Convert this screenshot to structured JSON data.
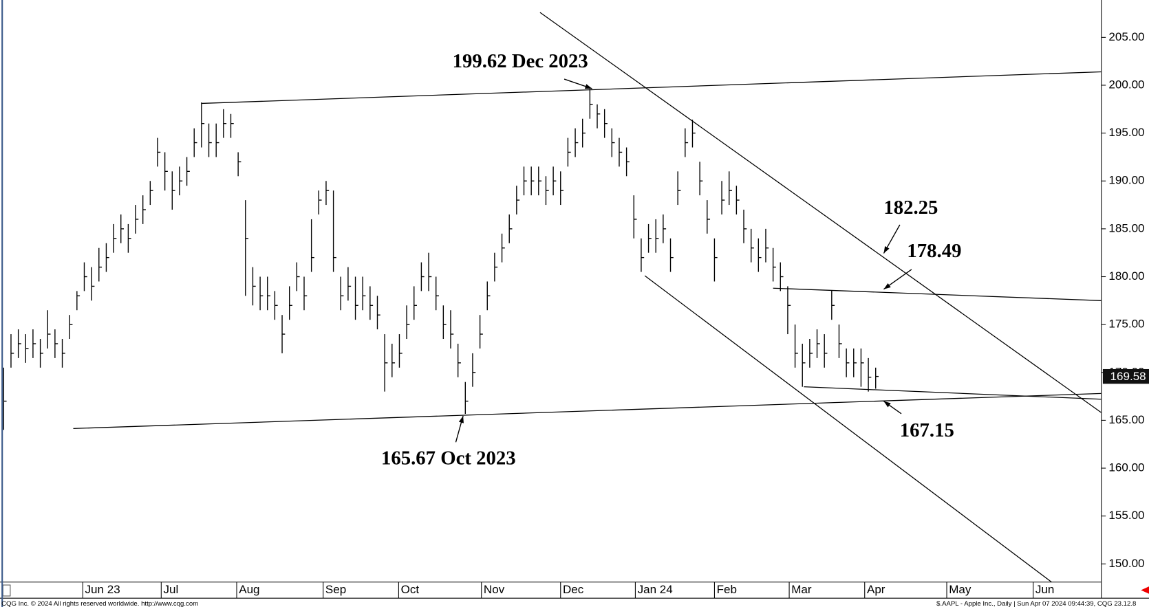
{
  "chart_data": {
    "type": "ohlc",
    "xlim": [
      0,
      300.6
    ],
    "ylim": [
      148.1,
      208.9
    ],
    "xticks": [
      {
        "value": 22.6,
        "label": "Jun 23"
      },
      {
        "value": 44,
        "label": "Jul"
      },
      {
        "value": 64.6,
        "label": "Aug"
      },
      {
        "value": 88.2,
        "label": "Sep"
      },
      {
        "value": 108.8,
        "label": "Oct"
      },
      {
        "value": 131.4,
        "label": "Nov"
      },
      {
        "value": 153,
        "label": "Dec"
      },
      {
        "value": 173.4,
        "label": "Jan 24"
      },
      {
        "value": 195,
        "label": "Feb"
      },
      {
        "value": 215.4,
        "label": "Mar"
      },
      {
        "value": 236,
        "label": "Apr"
      },
      {
        "value": 258.4,
        "label": "May"
      },
      {
        "value": 282,
        "label": "Jun"
      }
    ],
    "yticks": [
      {
        "value": 150,
        "label": "150.00"
      },
      {
        "value": 155,
        "label": "155.00"
      },
      {
        "value": 160,
        "label": "160.00"
      },
      {
        "value": 165,
        "label": "165.00"
      },
      {
        "value": 170,
        "label": "170.00"
      },
      {
        "value": 175,
        "label": "175.00"
      },
      {
        "value": 180,
        "label": "180.00"
      },
      {
        "value": 185,
        "label": "185.00"
      },
      {
        "value": 190,
        "label": "190.00"
      },
      {
        "value": 195,
        "label": "195.00"
      },
      {
        "value": 200,
        "label": "200.00"
      },
      {
        "value": 205,
        "label": "205.00"
      }
    ],
    "color": "#000000",
    "x": [
      1,
      3,
      5,
      7,
      9,
      11,
      13,
      15,
      17,
      19,
      21,
      23,
      25,
      27,
      29,
      31,
      33,
      35,
      37,
      39,
      41,
      43,
      45,
      47,
      49,
      51,
      53,
      55,
      57,
      59,
      61,
      63,
      65,
      67,
      69,
      71,
      73,
      75,
      77,
      79,
      81,
      83,
      85,
      87,
      89,
      91,
      93,
      95,
      97,
      99,
      101,
      103,
      105,
      107,
      109,
      111,
      113,
      115,
      117,
      119,
      121,
      123,
      125,
      127,
      129,
      131,
      133,
      135,
      137,
      139,
      141,
      143,
      145,
      147,
      149,
      151,
      153,
      155,
      157,
      159,
      161,
      163,
      165,
      167,
      169,
      171,
      173,
      175,
      177,
      179,
      181,
      183,
      185,
      187,
      189,
      191,
      193,
      195,
      197,
      199,
      201,
      203,
      205,
      207,
      209,
      211,
      213,
      215,
      217,
      219,
      221,
      223,
      225,
      227,
      229,
      231,
      233,
      235,
      237,
      239
    ],
    "high": [
      170.5,
      174,
      174.5,
      174,
      174.5,
      173.5,
      176.5,
      174.5,
      173.5,
      176,
      178.5,
      181.5,
      181,
      183,
      183.5,
      185.5,
      186.5,
      185.5,
      187.5,
      188.5,
      190,
      194.5,
      193,
      191,
      191.5,
      192.5,
      195.5,
      198.2,
      196,
      196,
      197.5,
      197,
      193,
      188,
      181,
      180,
      180,
      178.5,
      176,
      179,
      181.5,
      180,
      186,
      189,
      190,
      189,
      180,
      181,
      180,
      180,
      179,
      178,
      174,
      173,
      174,
      177,
      179,
      181.5,
      182.5,
      180,
      177,
      176.5,
      173,
      169,
      172,
      176,
      179.5,
      182.5,
      184.5,
      186.5,
      189.5,
      191.5,
      191.5,
      191.5,
      190.5,
      191.5,
      191,
      194.5,
      195.5,
      196.5,
      199.62,
      198,
      197.5,
      195.5,
      194.5,
      193.5,
      188.5,
      184,
      185.5,
      186,
      186.5,
      184,
      191,
      195.5,
      196.4,
      192,
      188,
      184,
      190,
      191,
      189.5,
      187,
      185,
      184,
      185,
      183,
      181.5,
      179,
      175,
      173,
      173.5,
      174.5,
      174,
      178.6,
      175,
      172.5,
      172.5,
      172.5,
      171.5,
      170.5
    ],
    "low": [
      164,
      170.5,
      171.5,
      171,
      171.5,
      170.5,
      172.5,
      171.5,
      170.5,
      173.5,
      176.5,
      178.5,
      177.5,
      179.5,
      180.5,
      182.5,
      183.5,
      182.5,
      184.5,
      185.5,
      187.5,
      191.5,
      189,
      187,
      188.5,
      189.5,
      192.5,
      193.5,
      192.5,
      192.5,
      194.5,
      194.5,
      190.5,
      178,
      177,
      176.5,
      176.5,
      175.5,
      172,
      175.5,
      178.5,
      176.5,
      180.5,
      186.5,
      187.5,
      180.5,
      176.5,
      177.5,
      175.5,
      176.5,
      175.5,
      174.5,
      168,
      169.5,
      170.5,
      173.5,
      175.5,
      178.5,
      178.5,
      176.5,
      173.5,
      172.5,
      169.5,
      165.67,
      168.5,
      172.5,
      176.5,
      179.5,
      181.5,
      183.5,
      186.5,
      188.5,
      188.5,
      188.5,
      187.5,
      188.5,
      187.5,
      191.5,
      192.5,
      193.5,
      196.5,
      195.5,
      194.5,
      192.5,
      191.5,
      190.5,
      184,
      180.5,
      182.5,
      182.5,
      183.5,
      180.5,
      187.5,
      192.5,
      193.5,
      188.5,
      184.5,
      179.5,
      186.5,
      187.5,
      186.5,
      183.5,
      181.5,
      180.5,
      181.5,
      179.5,
      178.5,
      174,
      170.5,
      168.5,
      170.5,
      171.5,
      170.5,
      175.5,
      171.5,
      169.5,
      169.5,
      168.5,
      168,
      168.3
    ],
    "close": [
      167,
      172,
      173,
      172.5,
      173,
      172,
      174,
      173,
      172,
      175,
      178,
      180,
      179,
      181,
      182,
      184,
      185,
      184,
      186,
      187,
      189,
      193,
      191,
      189,
      190,
      191,
      194,
      196,
      194,
      194,
      196,
      196,
      192,
      184,
      179,
      178,
      178,
      177,
      174,
      177,
      180,
      178,
      182,
      188,
      189,
      182,
      178,
      179,
      177,
      178,
      177,
      176,
      171,
      171,
      172,
      175,
      177,
      180,
      180,
      178,
      175,
      174,
      171,
      167,
      170,
      174,
      178,
      181,
      183,
      185,
      188,
      190,
      190,
      190,
      189,
      190,
      189,
      193,
      194,
      195,
      198,
      197,
      196,
      194,
      193,
      192,
      186,
      182,
      184,
      184,
      185,
      182,
      189,
      194,
      195,
      190,
      186,
      182,
      188,
      189,
      188,
      185,
      183,
      182,
      183,
      181,
      180,
      177,
      172,
      171,
      172,
      173,
      172,
      177,
      173,
      171,
      171,
      171,
      169.5,
      169.58
    ],
    "lines": [
      {
        "x": [
          55,
          300.6
        ],
        "y": [
          198.1,
          201.4
        ]
      },
      {
        "x": [
          20,
          300.6
        ],
        "y": [
          164.14,
          167.8
        ]
      },
      {
        "x": [
          147.4,
          300.6
        ],
        "y": [
          207.6,
          165.8
        ]
      },
      {
        "x": [
          176,
          287
        ],
        "y": [
          180.1,
          148.1
        ]
      },
      {
        "x": [
          211,
          300.6
        ],
        "y": [
          178.8,
          177.5
        ]
      },
      {
        "x": [
          219.4,
          300.6
        ],
        "y": [
          168.5,
          167.2
        ]
      }
    ],
    "annotations": [
      "199.62 Dec 2023",
      "165.67 Oct 2023",
      "182.25",
      "178.49",
      "167.15"
    ],
    "last_price": 169.58,
    "footer_left": "CQG Inc. © 2024 All rights reserved worldwide. http://www.cqg.com",
    "footer_right": "$.AAPL - Apple Inc., Daily | Sun Apr 07 2024 09:44:39, CQG 23.12.8"
  }
}
